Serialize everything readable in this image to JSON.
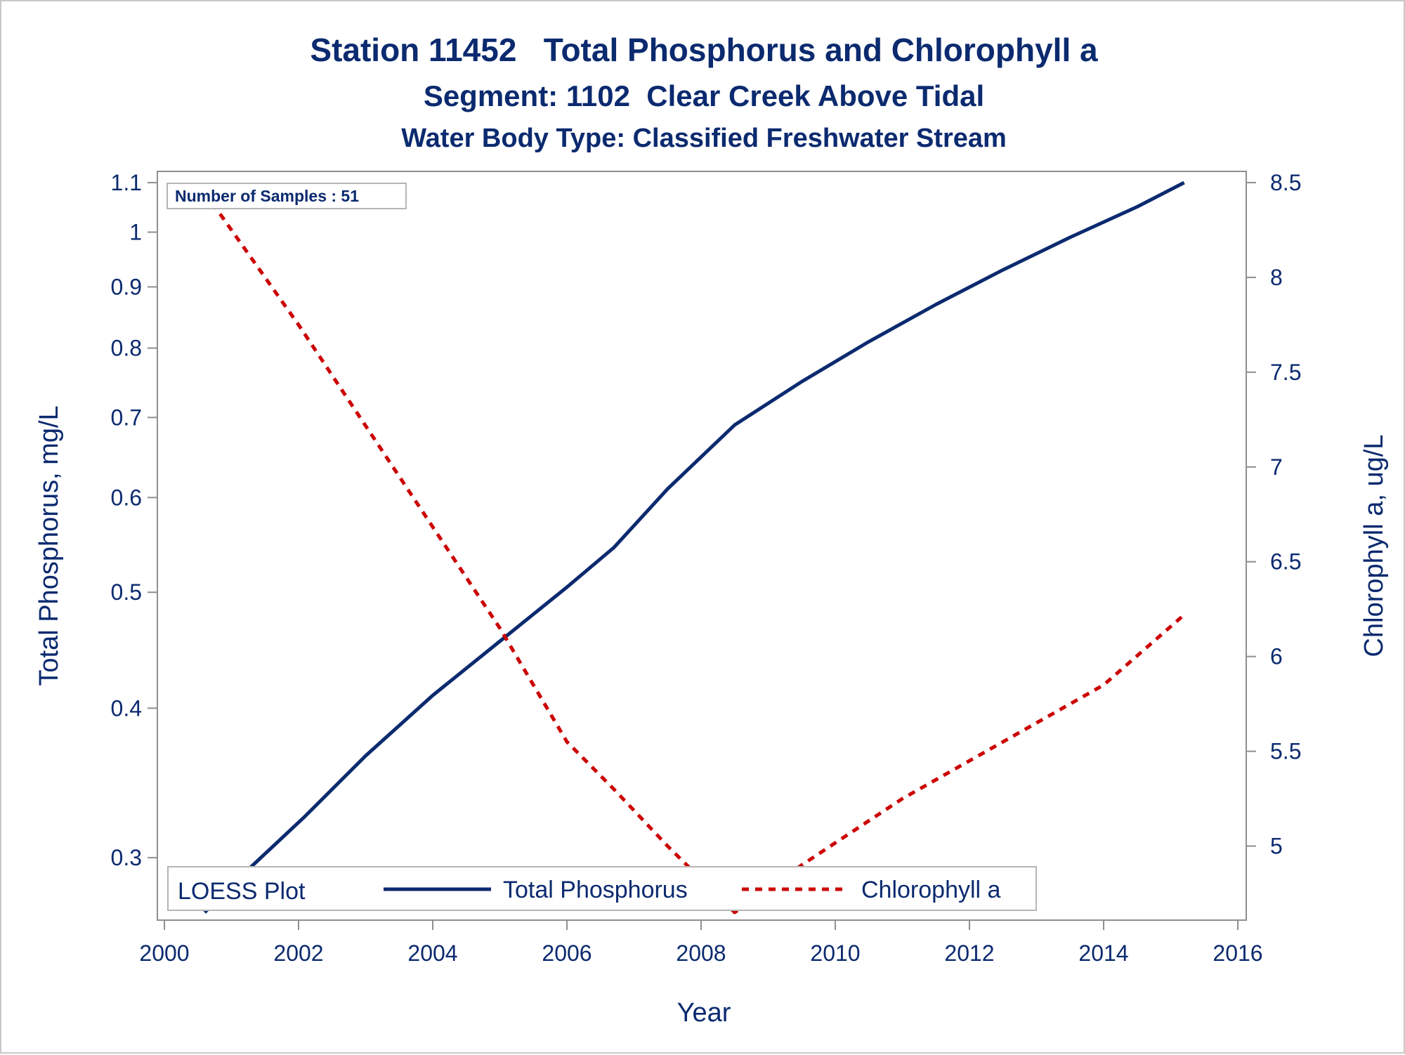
{
  "chart_data": {
    "type": "line",
    "title": "Station 11452   Total Phosphorus and Chlorophyll a",
    "subtitle": "Segment: 1102  Clear Creek Above Tidal",
    "subtitle2": "Water Body Type: Classified Freshwater Stream",
    "xlabel": "Year",
    "ylabel": "Total Phosphorus, mg/L",
    "y2label": "Chlorophyll a, ug/L",
    "xlim": [
      2000,
      2016
    ],
    "ylim": [
      0.27,
      1.1
    ],
    "yscale": "log",
    "y2lim": [
      4.65,
      8.5
    ],
    "x_ticks": [
      "2000",
      "2002",
      "2004",
      "2006",
      "2008",
      "2010",
      "2012",
      "2014",
      "2016"
    ],
    "y_ticks": [
      "0.3",
      "0.4",
      "0.5",
      "0.6",
      "0.7",
      "0.8",
      "0.9",
      "1",
      "1.1"
    ],
    "y2_ticks": [
      "5",
      "5.5",
      "6",
      "6.5",
      "7",
      "7.5",
      "8",
      "8.5"
    ],
    "grid": false,
    "inset_label": "Number of Samples : 51",
    "legend": {
      "title": "LOESS Plot",
      "placement": "bottom-inside",
      "entries": [
        "Total Phosphorus",
        "Chlorophyll a"
      ]
    },
    "series": [
      {
        "name": "Total Phosphorus",
        "axis": "left",
        "color": "#0b2a6f",
        "style": "solid",
        "x": [
          2000.6,
          2001.3,
          2002.1,
          2003.0,
          2004.0,
          2005.0,
          2006.0,
          2006.7,
          2007.5,
          2008.5,
          2009.5,
          2010.5,
          2011.5,
          2012.5,
          2013.5,
          2014.5,
          2015.2
        ],
        "y": [
          0.27,
          0.295,
          0.325,
          0.365,
          0.41,
          0.455,
          0.505,
          0.545,
          0.61,
          0.69,
          0.75,
          0.81,
          0.87,
          0.93,
          0.99,
          1.05,
          1.1
        ]
      },
      {
        "name": "Chlorophyll a",
        "axis": "right",
        "color": "#cc0000",
        "style": "dashed",
        "x": [
          2000.6,
          2002.0,
          2003.5,
          2005.0,
          2006.0,
          2006.7,
          2007.5,
          2008.5,
          2009.5,
          2011.0,
          2012.5,
          2014.0,
          2015.2
        ],
        "y": [
          8.45,
          7.75,
          6.95,
          6.15,
          5.55,
          5.3,
          5.0,
          4.65,
          4.9,
          5.25,
          5.55,
          5.85,
          6.22
        ]
      }
    ]
  }
}
